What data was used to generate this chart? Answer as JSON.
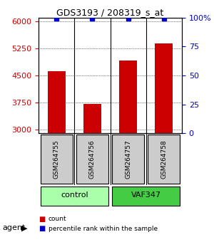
{
  "title": "GDS3193 / 208319_s_at",
  "samples": [
    "GSM264755",
    "GSM264756",
    "GSM264757",
    "GSM264758"
  ],
  "counts": [
    4620,
    3720,
    4920,
    5380
  ],
  "percentile_ranks": [
    99,
    99,
    99,
    99
  ],
  "ylim_left": [
    2900,
    6100
  ],
  "ylim_right": [
    0,
    100
  ],
  "yticks_left": [
    3000,
    3750,
    4500,
    5250,
    6000
  ],
  "yticks_right": [
    0,
    25,
    50,
    75,
    100
  ],
  "ytick_labels_right": [
    "0",
    "25",
    "50",
    "75",
    "100%"
  ],
  "bar_color": "#cc0000",
  "dot_color": "#0000cc",
  "groups": [
    {
      "label": "control",
      "samples": [
        0,
        1
      ],
      "color": "#aaffaa"
    },
    {
      "label": "VAF347",
      "samples": [
        2,
        3
      ],
      "color": "#44cc44"
    }
  ],
  "group_label": "agent",
  "legend_items": [
    {
      "color": "#cc0000",
      "label": "count"
    },
    {
      "color": "#0000cc",
      "label": "percentile rank within the sample"
    }
  ],
  "bar_width": 0.5,
  "sample_box_color": "#cccccc",
  "grid_color": "#000000",
  "background_color": "#ffffff"
}
